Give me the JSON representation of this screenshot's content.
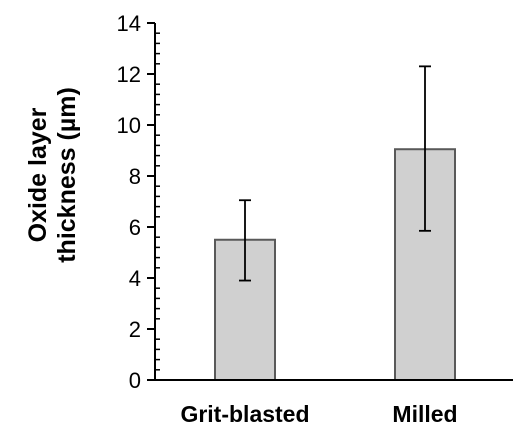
{
  "chart_data": {
    "type": "bar",
    "categories": [
      "Grit-blasted",
      "Milled"
    ],
    "series": [
      {
        "values": [
          5.5,
          9.05
        ],
        "error_low": [
          3.9,
          5.85
        ],
        "error_high": [
          7.05,
          12.3
        ]
      }
    ],
    "ylabel_lines": [
      "Oxide layer",
      "thickness (µm)"
    ],
    "xlabel": "",
    "ylim": [
      0,
      14
    ],
    "yticks": [
      0,
      2,
      4,
      6,
      8,
      10,
      12,
      14
    ],
    "bar_color": "#d0d0d0",
    "bar_edge_color": "#595959",
    "grid": false,
    "legend": "none"
  }
}
